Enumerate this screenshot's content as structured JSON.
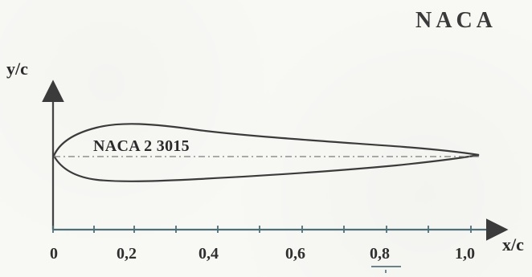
{
  "header": {
    "title": "NACA"
  },
  "diagram": {
    "y_axis_label": "y/c",
    "x_axis_label": "x/c",
    "airfoil_label": "NACA 2 3015",
    "x_ticks": [
      "0",
      "0,2",
      "0,4",
      "0,6",
      "0,8",
      "1,0"
    ]
  }
}
